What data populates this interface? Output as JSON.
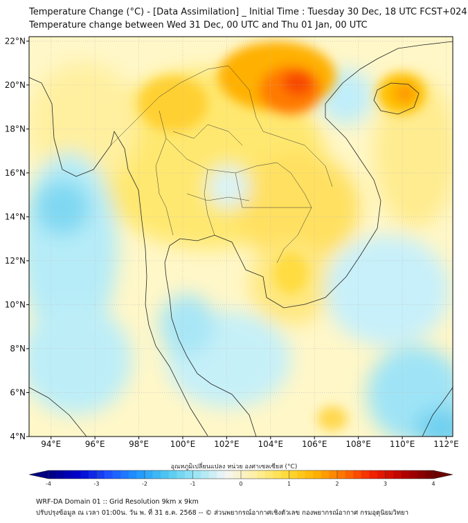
{
  "title": {
    "line1": "Temperature Change (°C) - [Data Assimilation] _ Initial Time : Tuesday 30 Dec, 18 UTC FCST+024",
    "line2": "Temperature change between Wed 31 Dec, 00 UTC and Thu 01 Jan, 00 UTC"
  },
  "axes": {
    "lat_labels": [
      "22°N",
      "20°N",
      "18°N",
      "16°N",
      "14°N",
      "12°N",
      "10°N",
      "8°N",
      "6°N",
      "4°N"
    ],
    "lat_values": [
      22,
      20,
      18,
      16,
      14,
      12,
      10,
      8,
      6,
      4
    ],
    "lon_labels": [
      "94°E",
      "96°E",
      "98°E",
      "100°E",
      "102°E",
      "104°E",
      "106°E",
      "108°E",
      "110°E",
      "112°E"
    ],
    "lon_values": [
      94,
      96,
      98,
      100,
      102,
      104,
      106,
      108,
      110,
      112
    ],
    "lon_range": [
      93,
      112.3
    ],
    "lat_range": [
      4,
      22.2
    ]
  },
  "colorbar": {
    "label": "อุณหภูมิเปลี่ยนแปลง หน่วย องศาเซลเซียส (°C)",
    "min": -4,
    "max": 4,
    "ticks": [
      "-4",
      "-3",
      "-2",
      "-1",
      "0",
      "1",
      "2",
      "3",
      "4"
    ],
    "tick_values": [
      -4,
      -3,
      -2,
      -1,
      0,
      1,
      2,
      3,
      4
    ],
    "colors": [
      "#000080",
      "#0000cd",
      "#1e50ff",
      "#1e96ff",
      "#50c8f0",
      "#9ee6f5",
      "#f5f5f5",
      "#fff0a0",
      "#ffdc3c",
      "#ffb400",
      "#ff6e00",
      "#f01e00",
      "#b40000",
      "#6e0000"
    ]
  },
  "footer": {
    "line1": "WRF-DA Domain 01 :: Grid Resolution 9km x 9km",
    "line2": "ปรับปรุงข้อมูล ณ เวลา 01:00น. วัน พ. ที่ 31 ธ.ค. 2568 -- © ส่วนพยากรณ์อากาศเชิงตัวเลข กองพยากรณ์อากาศ กรมอุตุนิยมวิทยา"
  }
}
